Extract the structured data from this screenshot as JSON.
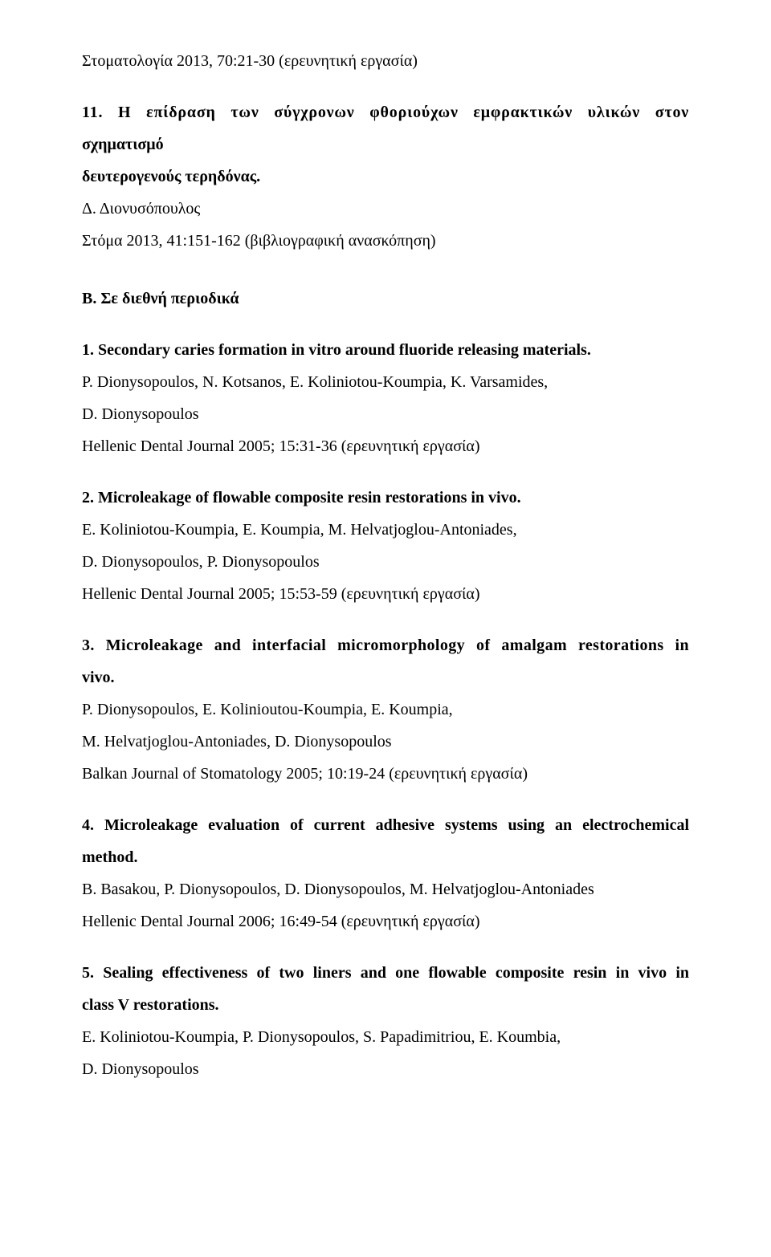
{
  "top_line": "Στοματολογία 2013, 70:21-30 (ερευνητική εργασία)",
  "entry11": {
    "title_line1": "11. Η επίδραση των σύγχρονων φθοριούχων εμφρακτικών υλικών στον",
    "title_line2": "σχηματισμό",
    "title_line3": "δευτερογενούς τερηδόνας.",
    "authors": "Δ. Διονυσόπουλος",
    "journal": "Στόμα 2013, 41:151-162 (βιβλιογραφική ανασκόπηση)"
  },
  "section_heading": "Β. Σε διεθνή περιοδικά",
  "entry1": {
    "title": "1. Secondary caries formation in vitro around fluoride releasing materials.",
    "authors_l1": "P. Dionysopoulos, N. Kotsanos, E. Koliniotou-Koumpia, K. Varsamides,",
    "authors_l2": "D. Dionysopoulos",
    "journal": "Hellenic Dental Journal 2005; 15:31-36 (ερευνητική εργασία)"
  },
  "entry2": {
    "title": "2. Microleakage of flowable composite resin restorations in vivo.",
    "authors_l1": "E. Koliniotou-Koumpia, E. Koumpia, M. Helvatjoglou-Antoniades,",
    "authors_l2": "D. Dionysopoulos, P. Dionysopoulos",
    "journal": "Hellenic Dental Journal 2005; 15:53-59 (ερευνητική εργασία)"
  },
  "entry3": {
    "title_l1": "3. Microleakage and interfacial micromorphology of amalgam restorations in",
    "title_l2": "vivo.",
    "authors_l1": "P. Dionysopoulos, E. Kolinioutou-Koumpia, E. Koumpia,",
    "authors_l2": "M. Helvatjoglou-Antoniades, D. Dionysopoulos",
    "journal": "Balkan Journal of Stomatology 2005; 10:19-24 (ερευνητική εργασία)"
  },
  "entry4": {
    "title_l1": "4. Microleakage evaluation of current adhesive systems using an electrochemical",
    "title_l2": "method.",
    "authors": "B. Basakou, P. Dionysopoulos, D. Dionysopoulos, M. Helvatjoglou-Antoniades",
    "journal": "Hellenic Dental Journal 2006; 16:49-54 (ερευνητική εργασία)"
  },
  "entry5": {
    "title_l1": "5. Sealing effectiveness of two liners and one flowable composite resin in vivo in",
    "title_l2": "class V restorations.",
    "authors_l1": "E. Koliniotou-Koumpia, P. Dionysopoulos, S. Papadimitriou, E. Koumbia,",
    "authors_l2": "D. Dionysopoulos"
  }
}
